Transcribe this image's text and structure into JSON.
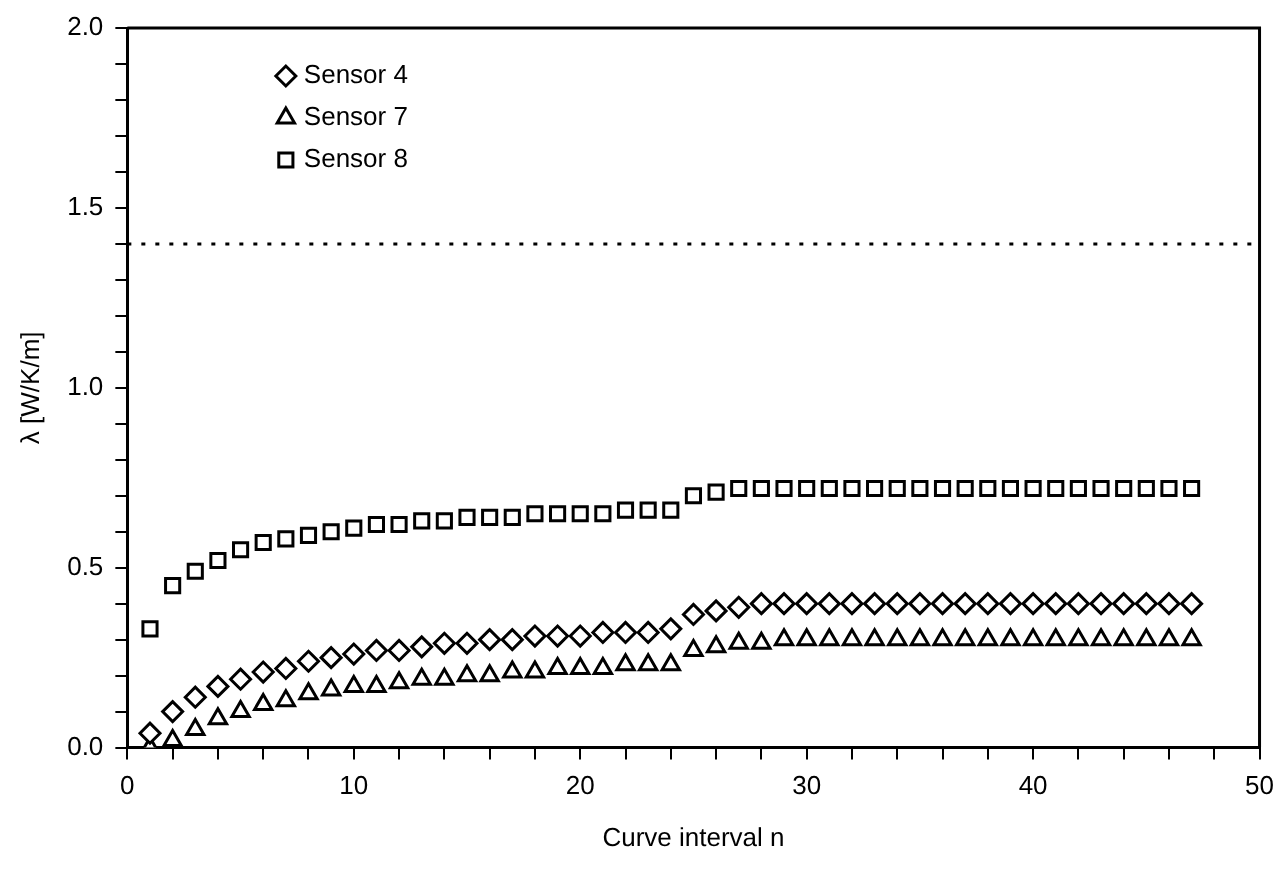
{
  "chart_data": {
    "type": "scatter",
    "xlabel": "Curve interval n",
    "ylabel": "λ [W/K/m]",
    "x": [
      1,
      2,
      3,
      4,
      5,
      6,
      7,
      8,
      9,
      10,
      11,
      12,
      13,
      14,
      15,
      16,
      17,
      18,
      19,
      20,
      21,
      22,
      23,
      24,
      25,
      26,
      27,
      28,
      29,
      30,
      31,
      32,
      33,
      34,
      35,
      36,
      37,
      38,
      39,
      40,
      41,
      42,
      43,
      44,
      45,
      46,
      47
    ],
    "series": [
      {
        "name": "Sensor 4",
        "color": "#000000",
        "marker": "diamond",
        "values": [
          0.04,
          0.1,
          0.14,
          0.17,
          0.19,
          0.21,
          0.22,
          0.24,
          0.25,
          0.26,
          0.27,
          0.27,
          0.28,
          0.29,
          0.29,
          0.3,
          0.3,
          0.31,
          0.31,
          0.31,
          0.32,
          0.32,
          0.32,
          0.33,
          0.37,
          0.38,
          0.39,
          0.4,
          0.4,
          0.4,
          0.4,
          0.4,
          0.4,
          0.4,
          0.4,
          0.4,
          0.4,
          0.4,
          0.4,
          0.4,
          0.4,
          0.4,
          0.4,
          0.4,
          0.4,
          0.4,
          0.4
        ]
      },
      {
        "name": "Sensor 7",
        "color": "#000000",
        "marker": "triangle",
        "values": [
          0.0,
          0.02,
          0.05,
          0.08,
          0.1,
          0.12,
          0.13,
          0.15,
          0.16,
          0.17,
          0.17,
          0.18,
          0.19,
          0.19,
          0.2,
          0.2,
          0.21,
          0.21,
          0.22,
          0.22,
          0.22,
          0.23,
          0.23,
          0.23,
          0.27,
          0.28,
          0.29,
          0.29,
          0.3,
          0.3,
          0.3,
          0.3,
          0.3,
          0.3,
          0.3,
          0.3,
          0.3,
          0.3,
          0.3,
          0.3,
          0.3,
          0.3,
          0.3,
          0.3,
          0.3,
          0.3,
          0.3
        ]
      },
      {
        "name": "Sensor 8",
        "color": "#000000",
        "marker": "square",
        "values": [
          0.33,
          0.45,
          0.49,
          0.52,
          0.55,
          0.57,
          0.58,
          0.59,
          0.6,
          0.61,
          0.62,
          0.62,
          0.63,
          0.63,
          0.64,
          0.64,
          0.64,
          0.65,
          0.65,
          0.65,
          0.65,
          0.66,
          0.66,
          0.66,
          0.7,
          0.71,
          0.72,
          0.72,
          0.72,
          0.72,
          0.72,
          0.72,
          0.72,
          0.72,
          0.72,
          0.72,
          0.72,
          0.72,
          0.72,
          0.72,
          0.72,
          0.72,
          0.72,
          0.72,
          0.72,
          0.72,
          0.72
        ]
      }
    ],
    "xlim": [
      0,
      50
    ],
    "xticks": [
      0,
      {
        "value": 2,
        "label": null
      },
      {
        "value": 4,
        "label": null
      },
      {
        "value": 6,
        "label": null
      },
      {
        "value": 8,
        "label": null
      },
      10,
      {
        "value": 12,
        "label": null
      },
      {
        "value": 14,
        "label": null
      },
      {
        "value": 16,
        "label": null
      },
      {
        "value": 18,
        "label": null
      },
      20,
      {
        "value": 22,
        "label": null
      },
      {
        "value": 24,
        "label": null
      },
      {
        "value": 26,
        "label": null
      },
      {
        "value": 28,
        "label": null
      },
      30,
      {
        "value": 32,
        "label": null
      },
      {
        "value": 34,
        "label": null
      },
      {
        "value": 36,
        "label": null
      },
      {
        "value": 38,
        "label": null
      },
      40,
      {
        "value": 42,
        "label": null
      },
      {
        "value": 44,
        "label": null
      },
      {
        "value": 46,
        "label": null
      },
      {
        "value": 48,
        "label": null
      },
      50
    ],
    "ylim": [
      0,
      2
    ],
    "yticks": [
      {
        "value": 0,
        "label": "0.0"
      },
      {
        "value": 0.1,
        "label": null
      },
      {
        "value": 0.2,
        "label": null
      },
      {
        "value": 0.3,
        "label": null
      },
      {
        "value": 0.4,
        "label": null
      },
      {
        "value": 0.5,
        "label": "0.5"
      },
      {
        "value": 0.6,
        "label": null
      },
      {
        "value": 0.7,
        "label": null
      },
      {
        "value": 0.8,
        "label": null
      },
      {
        "value": 0.9,
        "label": null
      },
      {
        "value": 1,
        "label": "1.0"
      },
      {
        "value": 1.1,
        "label": null
      },
      {
        "value": 1.2,
        "label": null
      },
      {
        "value": 1.3,
        "label": null
      },
      {
        "value": 1.4,
        "label": null
      },
      {
        "value": 1.5,
        "label": "1.5"
      },
      {
        "value": 1.6,
        "label": null
      },
      {
        "value": 1.7,
        "label": null
      },
      {
        "value": 1.8,
        "label": null
      },
      {
        "value": 1.9,
        "label": null
      },
      {
        "value": 2,
        "label": "2.0"
      }
    ],
    "ref_lines": [
      {
        "axis": "y",
        "value": 1.4,
        "line_style": "dotted",
        "color": "#000000"
      }
    ],
    "legend": "top left",
    "grid": false
  }
}
